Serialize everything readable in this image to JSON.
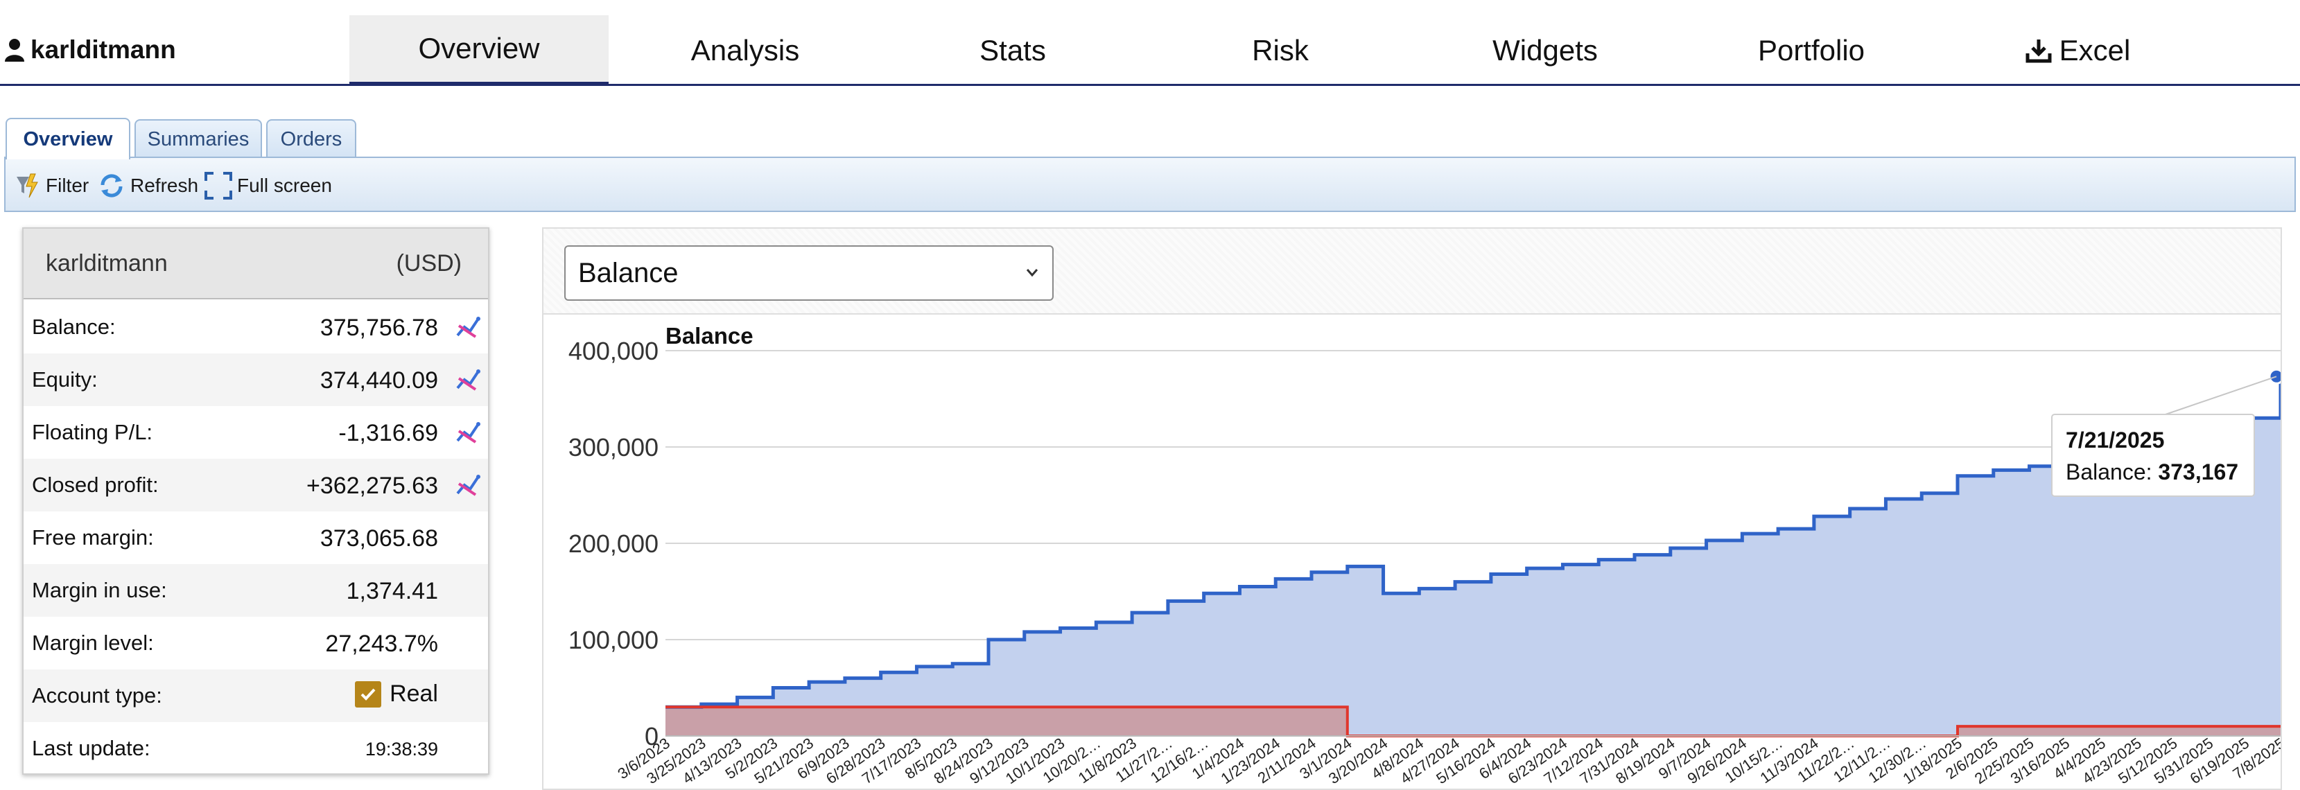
{
  "user": {
    "name": "karlditmann"
  },
  "nav": {
    "tabs": [
      {
        "label": "Overview",
        "active": true
      },
      {
        "label": "Analysis"
      },
      {
        "label": "Stats"
      },
      {
        "label": "Risk"
      },
      {
        "label": "Widgets"
      },
      {
        "label": "Portfolio"
      },
      {
        "label": "Excel",
        "icon": "download-icon"
      }
    ]
  },
  "subtabs": [
    {
      "label": "Overview",
      "active": true
    },
    {
      "label": "Summaries"
    },
    {
      "label": "Orders"
    }
  ],
  "toolbar": {
    "filter": "Filter",
    "refresh": "Refresh",
    "fullscreen": "Full screen"
  },
  "account": {
    "name": "karlditmann",
    "currency": "(USD)",
    "rows": [
      {
        "label": "Balance:",
        "value": "375,756.78",
        "icon": "chart-trend-icon"
      },
      {
        "label": "Equity:",
        "value": "374,440.09",
        "icon": "chart-trend-icon"
      },
      {
        "label": "Floating P/L:",
        "value": "-1,316.69",
        "icon": "chart-trend-icon"
      },
      {
        "label": "Closed profit:",
        "value": "+362,275.63",
        "icon": "chart-trend-icon"
      },
      {
        "label": "Free margin:",
        "value": "373,065.68"
      },
      {
        "label": "Margin in use:",
        "value": "1,374.41"
      },
      {
        "label": "Margin level:",
        "value": "27,243.7%"
      },
      {
        "label": "Account type:",
        "value": "Real",
        "checked": true
      },
      {
        "label": "Last update:",
        "value": "19:38:39"
      }
    ]
  },
  "metric_select": {
    "value": "Balance"
  },
  "tooltip": {
    "date": "7/21/2025",
    "label": "Balance:",
    "value": "373,167"
  },
  "colors": {
    "balance_line": "#2f63c8",
    "balance_fill": "#c3d1ee",
    "red_line": "#e0362c",
    "red_fill": "#c9a0a8",
    "nav_underline": "#1f2b6b"
  },
  "chart_data": {
    "type": "area",
    "title": "Balance",
    "ylim": [
      0,
      400000
    ],
    "yticks": [
      "400,000",
      "300,000",
      "200,000",
      "100,000",
      "0"
    ],
    "ytick_values": [
      400000,
      300000,
      200000,
      100000,
      0
    ],
    "x_tick_labels": [
      "3/6/2023",
      "3/25/2023",
      "4/13/2023",
      "5/2/2023",
      "5/21/2023",
      "6/9/2023",
      "6/28/2023",
      "7/17/2023",
      "8/5/2023",
      "8/24/2023",
      "9/12/2023",
      "10/1/2023",
      "10/20/2…",
      "11/8/2023",
      "11/27/2…",
      "12/16/2…",
      "1/4/2024",
      "1/23/2024",
      "2/11/2024",
      "3/1/2024",
      "3/20/2024",
      "4/8/2024",
      "4/27/2024",
      "5/16/2024",
      "6/4/2024",
      "6/23/2024",
      "7/12/2024",
      "7/31/2024",
      "8/19/2024",
      "9/7/2024",
      "9/26/2024",
      "10/15/2…",
      "11/3/2024",
      "11/22/2…",
      "12/11/2…",
      "12/30/2…",
      "1/18/2025",
      "2/6/2025",
      "2/25/2025",
      "3/16/2025",
      "4/4/2025",
      "4/23/2025",
      "5/12/2025",
      "5/31/2025",
      "6/19/2025",
      "7/8/2025"
    ],
    "series": [
      {
        "values": [
          30000,
          33000,
          40000,
          50000,
          56000,
          60000,
          66000,
          72000,
          75000,
          100000,
          108000,
          112000,
          118000,
          128000,
          140000,
          148000,
          155000,
          163000,
          170000,
          176000,
          148000,
          153000,
          160000,
          168000,
          174000,
          178000,
          183000,
          188000,
          195000,
          203000,
          210000,
          215000,
          228000,
          236000,
          246000,
          252000,
          270000,
          276000,
          280000,
          287000,
          291000,
          296000,
          308000,
          318000,
          330000,
          373167
        ]
      },
      {
        "values": [
          30000,
          30000,
          30000,
          30000,
          30000,
          30000,
          30000,
          30000,
          30000,
          30000,
          30000,
          30000,
          30000,
          30000,
          30000,
          30000,
          30000,
          30000,
          30000,
          0,
          0,
          0,
          0,
          0,
          0,
          0,
          0,
          0,
          0,
          0,
          0,
          0,
          0,
          0,
          0,
          0,
          10000,
          10000,
          10000,
          10000,
          10000,
          10000,
          10000,
          10000,
          10000,
          10000
        ]
      }
    ]
  }
}
